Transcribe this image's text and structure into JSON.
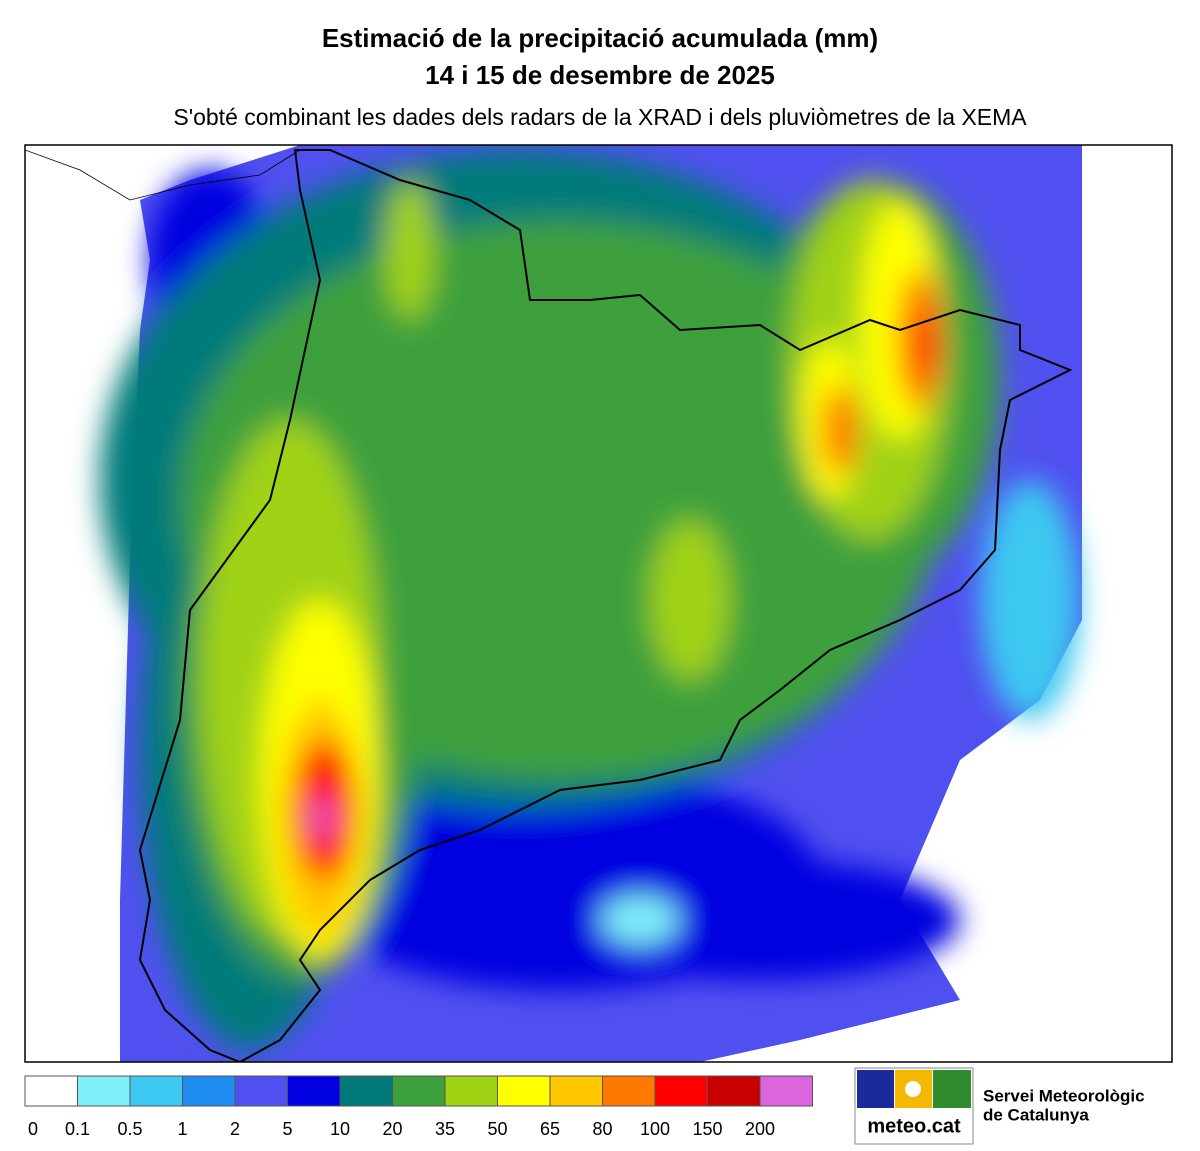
{
  "header": {
    "title": "Estimació de la precipitació acumulada (mm)",
    "date": "14 i 15 de desembre de 2025",
    "subtitle": "S'obté combinant les dades dels radars de la XRAD i dels pluviòmetres de la XEMA"
  },
  "legend": {
    "items": [
      {
        "label": "0",
        "color": "#ffffff"
      },
      {
        "label": "0.1",
        "color": "#80f0f8"
      },
      {
        "label": "0.5",
        "color": "#3cc8f0"
      },
      {
        "label": "1",
        "color": "#1e8cf0"
      },
      {
        "label": "2",
        "color": "#5050f0"
      },
      {
        "label": "5",
        "color": "#0000e0"
      },
      {
        "label": "10",
        "color": "#007a7a"
      },
      {
        "label": "20",
        "color": "#3ca03c"
      },
      {
        "label": "35",
        "color": "#a0d214"
      },
      {
        "label": "50",
        "color": "#ffff00"
      },
      {
        "label": "65",
        "color": "#ffc800"
      },
      {
        "label": "80",
        "color": "#ff7800"
      },
      {
        "label": "100",
        "color": "#ff0000"
      },
      {
        "label": "150",
        "color": "#c80000"
      },
      {
        "label": "200",
        "color": "#dc64dc"
      }
    ]
  },
  "logo": {
    "brand": "meteo.cat",
    "org_line1": "Servei Meteorològic",
    "org_line2": "de Catalunya"
  }
}
